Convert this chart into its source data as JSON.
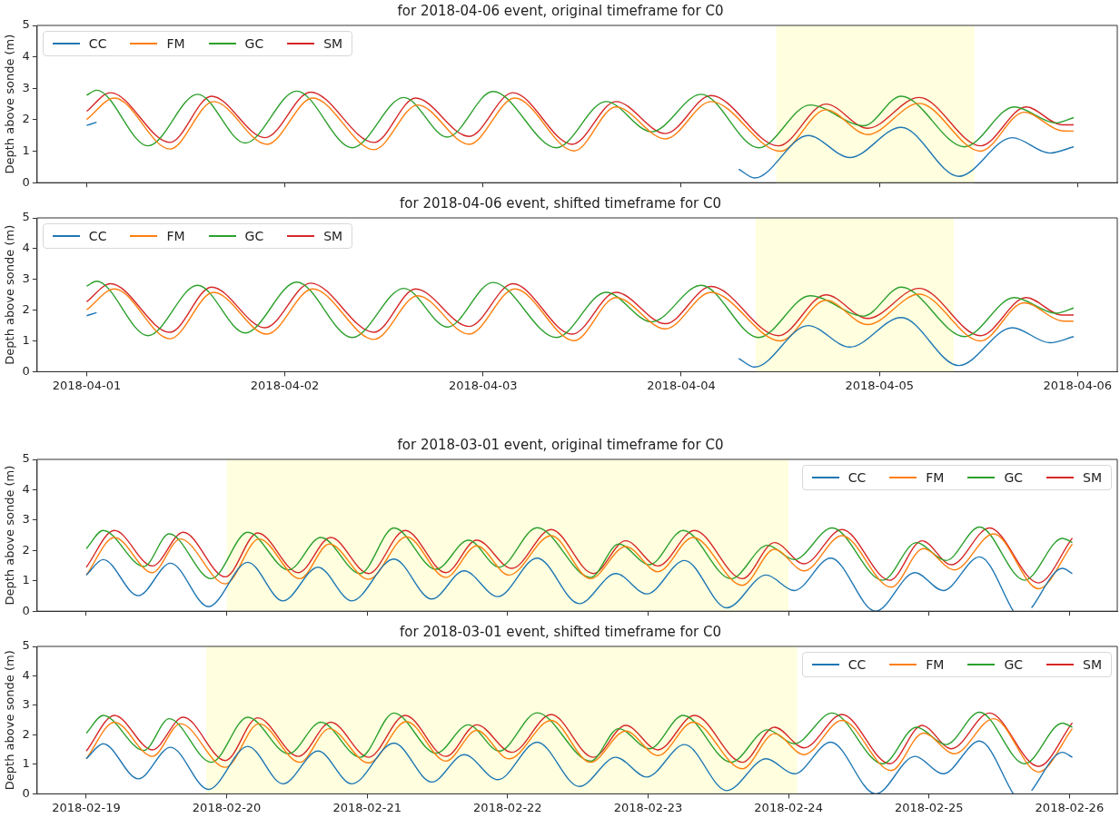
{
  "chart_data": [
    {
      "type": "line",
      "title": "for 2018-04-06 event, original timeframe for C0",
      "ylabel": "Depth above sonde (m)",
      "xlim": [
        "2018-03-31T18:00",
        "2018-04-06T04:48"
      ],
      "xticks": [
        "2018-04-01",
        "2018-04-02",
        "2018-04-03",
        "2018-04-04",
        "2018-04-05",
        "2018-04-06"
      ],
      "ylim": [
        0,
        5
      ],
      "yticks": [
        0,
        1,
        2,
        3,
        4,
        5
      ],
      "tick_labels": "y",
      "legend": "top left",
      "bands": [
        {
          "axis": "x",
          "from": "2018-04-04T11:30",
          "to": "2018-04-05T11:30",
          "color": "#ffffe0"
        }
      ],
      "series": [
        {
          "name": "CC",
          "color": "#1f77b4",
          "x": [
            "2018-04-01T00:00",
            "2018-04-01T01:12",
            "2018-04-02T12:00",
            "2018-04-04T06:58",
            "2018-04-04T08:53",
            "2018-04-04T15:22",
            "2018-04-04T20:24",
            "2018-04-05T02:38",
            "2018-04-05T09:36",
            "2018-04-05T16:05",
            "2018-04-05T20:38",
            "2018-04-05T23:31"
          ],
          "values": [
            1.82,
            1.92,
            null,
            0.43,
            0.15,
            1.5,
            0.8,
            1.76,
            0.2,
            1.43,
            0.94,
            1.14
          ]
        },
        {
          "name": "FM",
          "color": "#ff7f0e",
          "x": [
            "2018-04-01T00:00",
            "2018-04-01T03:22",
            "2018-04-01T10:05",
            "2018-04-01T15:22",
            "2018-04-01T21:50",
            "2018-04-02T03:22",
            "2018-04-02T10:48",
            "2018-04-02T16:05",
            "2018-04-02T22:19",
            "2018-04-03T03:50",
            "2018-04-03T11:02",
            "2018-04-03T16:05",
            "2018-04-03T22:05",
            "2018-04-04T03:36",
            "2018-04-04T12:00",
            "2018-04-04T17:31",
            "2018-04-04T22:34",
            "2018-04-05T04:48",
            "2018-04-05T12:14",
            "2018-04-05T17:31",
            "2018-04-05T22:05",
            "2018-04-05T23:31"
          ],
          "values": [
            2.01,
            2.69,
            1.07,
            2.58,
            1.22,
            2.69,
            1.05,
            2.47,
            1.22,
            2.69,
            1.01,
            2.41,
            1.39,
            2.58,
            1.0,
            2.32,
            1.53,
            2.52,
            1.0,
            2.24,
            1.65,
            1.64
          ]
        },
        {
          "name": "GC",
          "color": "#2ca02c",
          "x": [
            "2018-04-01T00:00",
            "2018-04-01T01:12",
            "2018-04-01T07:26",
            "2018-04-01T13:26",
            "2018-04-01T19:12",
            "2018-04-02T01:26",
            "2018-04-02T08:10",
            "2018-04-02T14:24",
            "2018-04-02T19:41",
            "2018-04-03T01:12",
            "2018-04-03T08:53",
            "2018-04-03T14:53",
            "2018-04-03T20:24",
            "2018-04-04T02:24",
            "2018-04-04T09:22",
            "2018-04-04T15:36",
            "2018-04-04T22:05",
            "2018-04-05T02:38",
            "2018-04-05T10:19",
            "2018-04-05T16:19",
            "2018-04-05T21:22",
            "2018-04-05T23:31"
          ],
          "values": [
            2.78,
            2.94,
            1.17,
            2.81,
            1.26,
            2.91,
            1.11,
            2.71,
            1.45,
            2.9,
            1.11,
            2.58,
            1.62,
            2.81,
            1.11,
            2.47,
            1.81,
            2.75,
            1.14,
            2.41,
            1.9,
            2.07
          ]
        },
        {
          "name": "SM",
          "color": "#d62728",
          "x": [
            "2018-04-01T00:00",
            "2018-04-01T02:53",
            "2018-04-01T10:05",
            "2018-04-01T15:07",
            "2018-04-01T21:36",
            "2018-04-02T03:07",
            "2018-04-02T10:48",
            "2018-04-02T15:50",
            "2018-04-02T22:19",
            "2018-04-03T03:36",
            "2018-04-03T10:48",
            "2018-04-03T16:05",
            "2018-04-03T22:05",
            "2018-04-04T03:36",
            "2018-04-04T11:46",
            "2018-04-04T17:31",
            "2018-04-04T22:34",
            "2018-04-05T04:48",
            "2018-04-05T12:14",
            "2018-04-05T17:46",
            "2018-04-05T22:05",
            "2018-04-05T23:31"
          ],
          "values": [
            2.27,
            2.86,
            1.28,
            2.75,
            1.43,
            2.88,
            1.28,
            2.69,
            1.47,
            2.86,
            1.22,
            2.58,
            1.56,
            2.77,
            1.17,
            2.5,
            1.73,
            2.71,
            1.17,
            2.41,
            1.84,
            1.84
          ]
        }
      ]
    },
    {
      "type": "line",
      "title": "for 2018-04-06 event, shifted timeframe for C0",
      "ylabel": "Depth above sonde (m)",
      "xlim": [
        "2018-03-31T18:00",
        "2018-04-06T04:48"
      ],
      "xticks": [
        "2018-04-01",
        "2018-04-02",
        "2018-04-03",
        "2018-04-04",
        "2018-04-05",
        "2018-04-06"
      ],
      "ylim": [
        0,
        5
      ],
      "yticks": [
        0,
        1,
        2,
        3,
        4,
        5
      ],
      "legend": "top left",
      "bands": [
        {
          "axis": "x",
          "from": "2018-04-04T09:00",
          "to": "2018-04-05T09:00",
          "color": "#ffffe0"
        }
      ],
      "series": [
        {
          "name": "CC",
          "color": "#1f77b4",
          "x": [
            "2018-04-01T00:00",
            "2018-04-01T01:12",
            "2018-04-02T12:00",
            "2018-04-04T06:58",
            "2018-04-04T08:53",
            "2018-04-04T15:22",
            "2018-04-04T20:24",
            "2018-04-05T02:38",
            "2018-04-05T09:36",
            "2018-04-05T16:05",
            "2018-04-05T20:38",
            "2018-04-05T23:31"
          ],
          "values": [
            1.82,
            1.92,
            null,
            0.43,
            0.15,
            1.5,
            0.8,
            1.76,
            0.2,
            1.43,
            0.94,
            1.14
          ]
        },
        {
          "name": "FM",
          "color": "#ff7f0e",
          "x": [
            "2018-04-01T00:00",
            "2018-04-01T03:22",
            "2018-04-01T10:05",
            "2018-04-01T15:22",
            "2018-04-01T21:50",
            "2018-04-02T03:22",
            "2018-04-02T10:48",
            "2018-04-02T16:05",
            "2018-04-02T22:19",
            "2018-04-03T03:50",
            "2018-04-03T11:02",
            "2018-04-03T16:05",
            "2018-04-03T22:05",
            "2018-04-04T03:36",
            "2018-04-04T12:00",
            "2018-04-04T17:31",
            "2018-04-04T22:34",
            "2018-04-05T04:48",
            "2018-04-05T12:14",
            "2018-04-05T17:31",
            "2018-04-05T22:05",
            "2018-04-05T23:31"
          ],
          "values": [
            2.01,
            2.69,
            1.07,
            2.58,
            1.22,
            2.69,
            1.05,
            2.47,
            1.22,
            2.69,
            1.01,
            2.41,
            1.39,
            2.58,
            1.0,
            2.32,
            1.53,
            2.52,
            1.0,
            2.24,
            1.65,
            1.64
          ]
        },
        {
          "name": "GC",
          "color": "#2ca02c",
          "x": [
            "2018-04-01T00:00",
            "2018-04-01T01:12",
            "2018-04-01T07:26",
            "2018-04-01T13:26",
            "2018-04-01T19:12",
            "2018-04-02T01:26",
            "2018-04-02T08:10",
            "2018-04-02T14:24",
            "2018-04-02T19:41",
            "2018-04-03T01:12",
            "2018-04-03T08:53",
            "2018-04-03T14:53",
            "2018-04-03T20:24",
            "2018-04-04T02:24",
            "2018-04-04T09:22",
            "2018-04-04T15:36",
            "2018-04-04T22:05",
            "2018-04-05T02:38",
            "2018-04-05T10:19",
            "2018-04-05T16:19",
            "2018-04-05T21:22",
            "2018-04-05T23:31"
          ],
          "values": [
            2.78,
            2.94,
            1.17,
            2.81,
            1.26,
            2.91,
            1.11,
            2.71,
            1.45,
            2.9,
            1.11,
            2.58,
            1.62,
            2.81,
            1.11,
            2.47,
            1.81,
            2.75,
            1.14,
            2.41,
            1.9,
            2.07
          ]
        },
        {
          "name": "SM",
          "color": "#d62728",
          "x": [
            "2018-04-01T00:00",
            "2018-04-01T02:53",
            "2018-04-01T10:05",
            "2018-04-01T15:07",
            "2018-04-01T21:36",
            "2018-04-02T03:07",
            "2018-04-02T10:48",
            "2018-04-02T15:50",
            "2018-04-02T22:19",
            "2018-04-03T03:36",
            "2018-04-03T10:48",
            "2018-04-03T16:05",
            "2018-04-03T22:05",
            "2018-04-04T03:36",
            "2018-04-04T11:46",
            "2018-04-04T17:31",
            "2018-04-04T22:34",
            "2018-04-05T04:48",
            "2018-04-05T12:14",
            "2018-04-05T17:46",
            "2018-04-05T22:05",
            "2018-04-05T23:31"
          ],
          "values": [
            2.27,
            2.86,
            1.28,
            2.75,
            1.43,
            2.88,
            1.28,
            2.69,
            1.47,
            2.86,
            1.22,
            2.58,
            1.56,
            2.77,
            1.17,
            2.5,
            1.73,
            2.71,
            1.17,
            2.41,
            1.84,
            1.84
          ]
        }
      ]
    },
    {
      "type": "line",
      "title": "for 2018-03-01 event, original timeframe for C0",
      "ylabel": "Depth above sonde (m)",
      "xlim": [
        "2018-02-18T15:36",
        "2018-02-26T08:10"
      ],
      "xticks": [
        "2018-02-19",
        "2018-02-20",
        "2018-02-21",
        "2018-02-22",
        "2018-02-23",
        "2018-02-24",
        "2018-02-25",
        "2018-02-26"
      ],
      "ylim": [
        0,
        5
      ],
      "yticks": [
        0,
        1,
        2,
        3,
        4,
        5
      ],
      "tick_labels": "y",
      "legend": "top right",
      "bands": [
        {
          "axis": "x",
          "from": "2018-02-20T00:00",
          "to": "2018-02-24T00:00",
          "color": "#ffffe0"
        }
      ],
      "series": [
        {
          "name": "CC",
          "color": "#1f77b4",
          "x": [
            "2018-02-19T00:00",
            "2018-02-19T02:53",
            "2018-02-19T08:53",
            "2018-02-19T14:24",
            "2018-02-19T20:53",
            "2018-02-20T03:36",
            "2018-02-20T09:36",
            "2018-02-20T15:36",
            "2018-02-20T21:22",
            "2018-02-21T04:34",
            "2018-02-21T11:02",
            "2018-02-21T16:34",
            "2018-02-21T22:19",
            "2018-02-22T05:02",
            "2018-02-22T12:14",
            "2018-02-22T18:29",
            "2018-02-22T23:46",
            "2018-02-23T06:14",
            "2018-02-23T13:26",
            "2018-02-23T20:10",
            "2018-02-24T00:58",
            "2018-02-24T07:12",
            "2018-02-24T14:53",
            "2018-02-24T21:36",
            "2018-02-25T02:24",
            "2018-02-25T08:38",
            "2018-02-25T14:24",
            "2018-02-25T16:00",
            "2018-02-25T17:31",
            "2018-02-25T22:48",
            "2018-02-26T00:29"
          ],
          "values": [
            1.19,
            1.7,
            0.51,
            1.58,
            0.15,
            1.61,
            0.34,
            1.45,
            0.34,
            1.72,
            0.4,
            1.33,
            0.48,
            1.75,
            0.25,
            1.24,
            0.57,
            1.67,
            0.11,
            1.19,
            0.68,
            1.75,
            0,
            1.27,
            0.68,
            1.79,
            0,
            null,
            0.11,
            1.41,
            1.24
          ]
        },
        {
          "name": "FM",
          "color": "#ff7f0e",
          "x": [
            "2018-02-19T00:00",
            "2018-02-19T04:48",
            "2018-02-19T11:17",
            "2018-02-19T16:05",
            "2018-02-19T23:46",
            "2018-02-20T05:31",
            "2018-02-20T12:29",
            "2018-02-20T17:31",
            "2018-02-21T00:14",
            "2018-02-21T06:43",
            "2018-02-21T13:26",
            "2018-02-21T18:43",
            "2018-02-22T00:14",
            "2018-02-22T07:26",
            "2018-02-22T14:10",
            "2018-02-22T20:10",
            "2018-02-23T01:41",
            "2018-02-23T07:41",
            "2018-02-23T16:05",
            "2018-02-23T21:36",
            "2018-02-24T02:38",
            "2018-02-24T09:07",
            "2018-02-24T17:31",
            "2018-02-24T23:02",
            "2018-02-25T04:19",
            "2018-02-25T11:02",
            "2018-02-25T18:43",
            "2018-02-26T00:29"
          ],
          "values": [
            1.19,
            2.43,
            1.27,
            2.38,
            0.9,
            2.38,
            1.07,
            2.21,
            1.05,
            2.45,
            1.11,
            2.15,
            1.19,
            2.49,
            1.07,
            2.13,
            1.3,
            2.43,
            0.85,
            2.04,
            1.33,
            2.49,
            0.79,
            2.06,
            1.36,
            2.55,
            0.74,
            2.21
          ]
        },
        {
          "name": "GC",
          "color": "#2ca02c",
          "x": [
            "2018-02-19T00:00",
            "2018-02-19T02:53",
            "2018-02-19T09:50",
            "2018-02-19T14:10",
            "2018-02-19T21:22",
            "2018-02-20T03:36",
            "2018-02-20T10:34",
            "2018-02-20T16:05",
            "2018-02-20T22:48",
            "2018-02-21T04:34",
            "2018-02-21T11:46",
            "2018-02-21T17:17",
            "2018-02-21T22:34",
            "2018-02-22T05:02",
            "2018-02-22T14:10",
            "2018-02-22T18:58",
            "2018-02-23T00:14",
            "2018-02-23T06:00",
            "2018-02-23T14:10",
            "2018-02-23T20:24",
            "2018-02-24T00:58",
            "2018-02-24T07:26",
            "2018-02-24T16:05",
            "2018-02-24T21:50",
            "2018-02-25T02:53",
            "2018-02-25T08:38",
            "2018-02-25T16:19",
            "2018-02-25T22:48",
            "2018-02-26T00:29"
          ],
          "values": [
            2.06,
            2.66,
            1.47,
            2.55,
            1.07,
            2.6,
            1.36,
            2.43,
            1.24,
            2.74,
            1.38,
            2.34,
            1.45,
            2.75,
            1.11,
            2.21,
            1.53,
            2.66,
            1.07,
            2.17,
            1.7,
            2.74,
            1.02,
            2.26,
            1.67,
            2.77,
            1.02,
            2.4,
            2.26
          ]
        },
        {
          "name": "SM",
          "color": "#d62728",
          "x": [
            "2018-02-19T00:00",
            "2018-02-19T04:48",
            "2018-02-19T11:17",
            "2018-02-19T16:34",
            "2018-02-19T23:46",
            "2018-02-20T05:17",
            "2018-02-20T12:14",
            "2018-02-20T17:46",
            "2018-02-21T00:14",
            "2018-02-21T06:29",
            "2018-02-21T13:26",
            "2018-02-21T18:43",
            "2018-02-22T00:43",
            "2018-02-22T07:26",
            "2018-02-22T14:38",
            "2018-02-22T20:10",
            "2018-02-23T01:41",
            "2018-02-23T07:55",
            "2018-02-23T16:05",
            "2018-02-23T21:36",
            "2018-02-24T02:38",
            "2018-02-24T09:07",
            "2018-02-24T17:17",
            "2018-02-24T22:48",
            "2018-02-25T03:50",
            "2018-02-25T10:19",
            "2018-02-25T18:43",
            "2018-02-26T00:29"
          ],
          "values": [
            1.45,
            2.66,
            1.49,
            2.6,
            1.13,
            2.58,
            1.27,
            2.43,
            1.24,
            2.66,
            1.27,
            2.34,
            1.41,
            2.69,
            1.24,
            2.32,
            1.49,
            2.66,
            1.07,
            2.26,
            1.56,
            2.69,
            1.02,
            2.32,
            1.53,
            2.74,
            0.93,
            2.41
          ]
        }
      ]
    },
    {
      "type": "line",
      "title": "for 2018-03-01 event, shifted timeframe for C0",
      "ylabel": "Depth above sonde (m)",
      "xlim": [
        "2018-02-18T15:36",
        "2018-02-26T08:10"
      ],
      "xticks": [
        "2018-02-19",
        "2018-02-20",
        "2018-02-21",
        "2018-02-22",
        "2018-02-23",
        "2018-02-24",
        "2018-02-25",
        "2018-02-26"
      ],
      "ylim": [
        0,
        5
      ],
      "yticks": [
        0,
        1,
        2,
        3,
        4,
        5
      ],
      "legend": "top right",
      "bands": [
        {
          "axis": "x",
          "from": "2018-02-19T20:30",
          "to": "2018-02-24T01:30",
          "color": "#ffffe0"
        }
      ],
      "series": [
        {
          "name": "CC",
          "color": "#1f77b4",
          "x": [
            "2018-02-19T00:00",
            "2018-02-19T02:53",
            "2018-02-19T08:53",
            "2018-02-19T14:24",
            "2018-02-19T20:53",
            "2018-02-20T03:36",
            "2018-02-20T09:36",
            "2018-02-20T15:36",
            "2018-02-20T21:22",
            "2018-02-21T04:34",
            "2018-02-21T11:02",
            "2018-02-21T16:34",
            "2018-02-21T22:19",
            "2018-02-22T05:02",
            "2018-02-22T12:14",
            "2018-02-22T18:29",
            "2018-02-22T23:46",
            "2018-02-23T06:14",
            "2018-02-23T13:26",
            "2018-02-23T20:10",
            "2018-02-24T00:58",
            "2018-02-24T07:12",
            "2018-02-24T14:53",
            "2018-02-24T21:36",
            "2018-02-25T02:24",
            "2018-02-25T08:38",
            "2018-02-25T14:24",
            "2018-02-25T16:00",
            "2018-02-25T17:31",
            "2018-02-25T22:48",
            "2018-02-26T00:29"
          ],
          "values": [
            1.19,
            1.7,
            0.51,
            1.58,
            0.15,
            1.61,
            0.34,
            1.45,
            0.34,
            1.72,
            0.4,
            1.33,
            0.48,
            1.75,
            0.25,
            1.24,
            0.57,
            1.67,
            0.11,
            1.19,
            0.68,
            1.75,
            0,
            1.27,
            0.68,
            1.79,
            0,
            null,
            0.11,
            1.41,
            1.24
          ]
        },
        {
          "name": "FM",
          "color": "#ff7f0e",
          "x": [
            "2018-02-19T00:00",
            "2018-02-19T04:48",
            "2018-02-19T11:17",
            "2018-02-19T16:05",
            "2018-02-19T23:46",
            "2018-02-20T05:31",
            "2018-02-20T12:29",
            "2018-02-20T17:31",
            "2018-02-21T00:14",
            "2018-02-21T06:43",
            "2018-02-21T13:26",
            "2018-02-21T18:43",
            "2018-02-22T00:14",
            "2018-02-22T07:26",
            "2018-02-22T14:10",
            "2018-02-22T20:10",
            "2018-02-23T01:41",
            "2018-02-23T07:41",
            "2018-02-23T16:05",
            "2018-02-23T21:36",
            "2018-02-24T02:38",
            "2018-02-24T09:07",
            "2018-02-24T17:31",
            "2018-02-24T23:02",
            "2018-02-25T04:19",
            "2018-02-25T11:02",
            "2018-02-25T18:43",
            "2018-02-26T00:29"
          ],
          "values": [
            1.19,
            2.43,
            1.27,
            2.38,
            0.9,
            2.38,
            1.07,
            2.21,
            1.05,
            2.45,
            1.11,
            2.15,
            1.19,
            2.49,
            1.07,
            2.13,
            1.3,
            2.43,
            0.85,
            2.04,
            1.33,
            2.49,
            0.79,
            2.06,
            1.36,
            2.55,
            0.74,
            2.21
          ]
        },
        {
          "name": "GC",
          "color": "#2ca02c",
          "x": [
            "2018-02-19T00:00",
            "2018-02-19T02:53",
            "2018-02-19T09:50",
            "2018-02-19T14:10",
            "2018-02-19T21:22",
            "2018-02-20T03:36",
            "2018-02-20T10:34",
            "2018-02-20T16:05",
            "2018-02-20T22:48",
            "2018-02-21T04:34",
            "2018-02-21T11:46",
            "2018-02-21T17:17",
            "2018-02-21T22:34",
            "2018-02-22T05:02",
            "2018-02-22T14:10",
            "2018-02-22T18:58",
            "2018-02-23T00:14",
            "2018-02-23T06:00",
            "2018-02-23T14:10",
            "2018-02-23T20:24",
            "2018-02-24T00:58",
            "2018-02-24T07:26",
            "2018-02-24T16:05",
            "2018-02-24T21:50",
            "2018-02-25T02:53",
            "2018-02-25T08:38",
            "2018-02-25T16:19",
            "2018-02-25T22:48",
            "2018-02-26T00:29"
          ],
          "values": [
            2.06,
            2.66,
            1.47,
            2.55,
            1.07,
            2.6,
            1.36,
            2.43,
            1.24,
            2.74,
            1.38,
            2.34,
            1.45,
            2.75,
            1.11,
            2.21,
            1.53,
            2.66,
            1.07,
            2.17,
            1.7,
            2.74,
            1.02,
            2.26,
            1.67,
            2.77,
            1.02,
            2.4,
            2.26
          ]
        },
        {
          "name": "SM",
          "color": "#d62728",
          "x": [
            "2018-02-19T00:00",
            "2018-02-19T04:48",
            "2018-02-19T11:17",
            "2018-02-19T16:34",
            "2018-02-19T23:46",
            "2018-02-20T05:17",
            "2018-02-20T12:14",
            "2018-02-20T17:46",
            "2018-02-21T00:14",
            "2018-02-21T06:29",
            "2018-02-21T13:26",
            "2018-02-21T18:43",
            "2018-02-22T00:43",
            "2018-02-22T07:26",
            "2018-02-22T14:38",
            "2018-02-22T20:10",
            "2018-02-23T01:41",
            "2018-02-23T07:55",
            "2018-02-23T16:05",
            "2018-02-23T21:36",
            "2018-02-24T02:38",
            "2018-02-24T09:07",
            "2018-02-24T17:17",
            "2018-02-24T22:48",
            "2018-02-25T03:50",
            "2018-02-25T10:19",
            "2018-02-25T18:43",
            "2018-02-26T00:29"
          ],
          "values": [
            1.45,
            2.66,
            1.49,
            2.6,
            1.13,
            2.58,
            1.27,
            2.43,
            1.24,
            2.66,
            1.27,
            2.34,
            1.41,
            2.69,
            1.24,
            2.32,
            1.49,
            2.66,
            1.07,
            2.26,
            1.56,
            2.69,
            1.02,
            2.32,
            1.53,
            2.74,
            0.93,
            2.41
          ]
        }
      ]
    }
  ]
}
